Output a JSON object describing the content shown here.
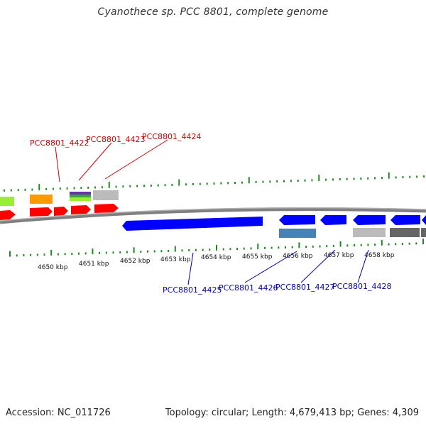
{
  "title": "Cyanothece sp. PCC 8801, complete genome",
  "footer": {
    "accession": "Accession: NC_011726",
    "info": "Topology: circular; Length: 4,679,413 bp; Genes: 4,309"
  },
  "colors": {
    "forward_label": "#cc0000",
    "reverse_label": "#0000aa",
    "tick": "#228822",
    "backbone": "#808080"
  },
  "ruler": {
    "labels": [
      "4650 kbp",
      "4651 kbp",
      "4652 kbp",
      "4653 kbp",
      "4654 kbp",
      "4655 kbp",
      "4656 kbp",
      "4657 kbp",
      "4658 kbp"
    ]
  },
  "forward_labels": [
    "PCC8801_4422",
    "PCC8801_4423",
    "PCC8801_4424"
  ],
  "reverse_labels": [
    "PCC8801_4425",
    "PCC8801_4426",
    "PCC8801_4427",
    "PCC8801_4428"
  ]
}
